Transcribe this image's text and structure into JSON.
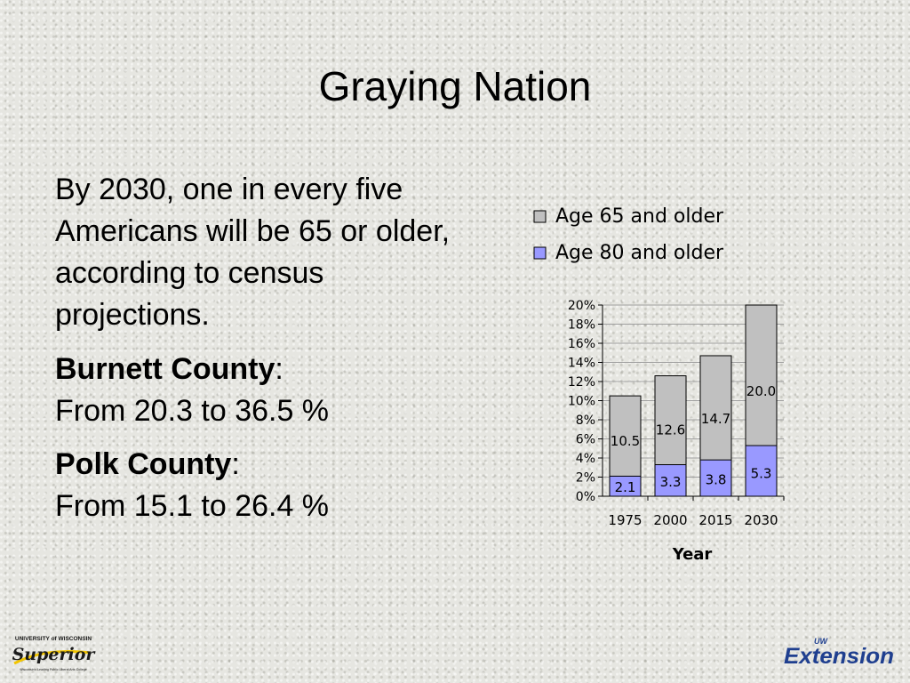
{
  "slide": {
    "title": "Graying Nation",
    "intro": "By 2030, one in every five Americans will be 65 or older, according to census projections.",
    "counties": [
      {
        "name": "Burnett County",
        "suffix": ":",
        "range": "From 20.3 to 36.5 %"
      },
      {
        "name": "Polk County",
        "suffix": ":",
        "range": "From 15.1 to 26.4 %"
      }
    ]
  },
  "colors": {
    "age65": "#c0c0c0",
    "age80": "#9999ff",
    "border": "#000000",
    "gridline": "#a0a0a0",
    "logo_text": "#1a1a1a",
    "extension_blue": "#1f3f8f"
  },
  "chart_data": {
    "type": "bar",
    "stacked": false,
    "categories": [
      "1975",
      "2000",
      "2015",
      "2030"
    ],
    "series": [
      {
        "name": "Age 65 and older",
        "values": [
          10.5,
          12.6,
          14.7,
          20.0
        ],
        "labels": [
          "10.5",
          "12.6",
          "14.7",
          "20.0"
        ]
      },
      {
        "name": "Age 80 and older",
        "values": [
          2.1,
          3.3,
          3.8,
          5.3
        ],
        "labels": [
          "2.1",
          "3.3",
          "3.8",
          "5.3"
        ]
      }
    ],
    "xlabel": "Year",
    "ylabel": "",
    "ylim": [
      0,
      20
    ],
    "yticks": [
      "0%",
      "2%",
      "4%",
      "6%",
      "8%",
      "10%",
      "12%",
      "14%",
      "16%",
      "18%",
      "20%"
    ],
    "grid": true,
    "legend_position": "top"
  },
  "logos": {
    "left": {
      "top_text": "UNIVERSITY of WISCONSIN",
      "script_text": "Superior",
      "tagline": "Wisconsin's Leading Public Liberal Arts College"
    },
    "right": {
      "small_text": "UW",
      "text": "Extension"
    }
  }
}
